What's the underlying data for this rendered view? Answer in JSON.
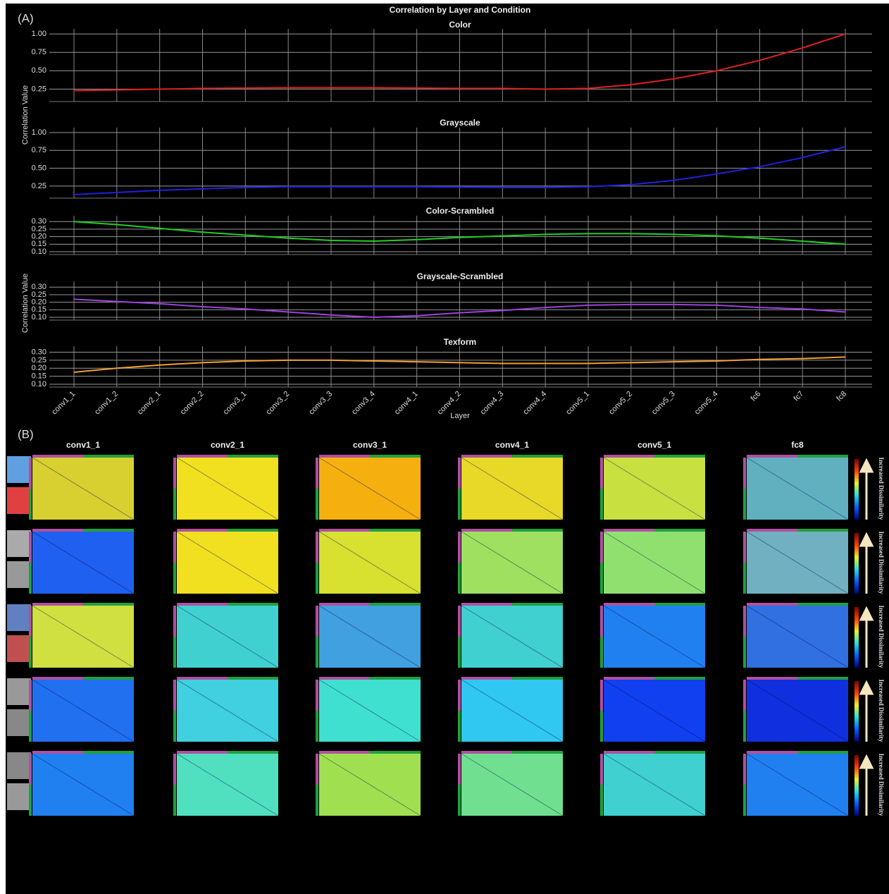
{
  "figure": {
    "title": "Correlation by Layer and Condition",
    "panel_a": "(A)",
    "panel_b": "(B)",
    "y_label": "Correlation Value",
    "x_label": "Layer"
  },
  "chart_data": [
    {
      "type": "line",
      "title": "Color",
      "ylim": [
        0.12,
        1.03
      ],
      "yticks": [
        {
          "value": 0.25,
          "label": "0.25"
        },
        {
          "value": 0.5,
          "label": "0.50"
        },
        {
          "value": 0.75,
          "label": "0.75"
        },
        {
          "value": 1.0,
          "label": "1.00"
        }
      ],
      "grid": true,
      "series": [
        {
          "color": "#e02020",
          "values": [
            0.23,
            0.24,
            0.25,
            0.26,
            0.265,
            0.27,
            0.27,
            0.27,
            0.265,
            0.26,
            0.26,
            0.25,
            0.26,
            0.31,
            0.39,
            0.5,
            0.64,
            0.81,
            1.0
          ]
        }
      ]
    },
    {
      "type": "line",
      "title": "Grayscale",
      "ylim": [
        0.12,
        1.03
      ],
      "yticks": [
        {
          "value": 0.25,
          "label": "0.25"
        },
        {
          "value": 0.5,
          "label": "0.50"
        },
        {
          "value": 0.75,
          "label": "0.75"
        },
        {
          "value": 1.0,
          "label": "1.00"
        }
      ],
      "grid": true,
      "series": [
        {
          "color": "#2020e0",
          "values": [
            0.13,
            0.16,
            0.19,
            0.21,
            0.23,
            0.24,
            0.24,
            0.24,
            0.24,
            0.235,
            0.23,
            0.23,
            0.24,
            0.27,
            0.33,
            0.42,
            0.52,
            0.65,
            0.8
          ]
        }
      ]
    },
    {
      "type": "line",
      "title": "Color-Scrambled",
      "ylim": [
        0.1,
        0.32
      ],
      "yticks": [
        {
          "value": 0.1,
          "label": "0.10"
        },
        0.15,
        {
          "value": 0.2,
          "label": "0.20"
        },
        0.25,
        {
          "value": 0.3,
          "label": "0.30"
        }
      ],
      "grid": true,
      "series": [
        {
          "color": "#20d020",
          "values": [
            0.3,
            0.28,
            0.255,
            0.23,
            0.21,
            0.19,
            0.175,
            0.17,
            0.18,
            0.195,
            0.205,
            0.215,
            0.22,
            0.22,
            0.215,
            0.205,
            0.19,
            0.17,
            0.15
          ]
        }
      ]
    },
    {
      "type": "line",
      "title": "Grayscale-Scrambled",
      "ylim": [
        0.1,
        0.32
      ],
      "yticks": [
        {
          "value": 0.1,
          "label": "0.10"
        },
        0.15,
        {
          "value": 0.2,
          "label": "0.20"
        },
        0.25,
        {
          "value": 0.3,
          "label": "0.30"
        }
      ],
      "grid": true,
      "series": [
        {
          "color": "#a040e0",
          "values": [
            0.22,
            0.205,
            0.19,
            0.17,
            0.155,
            0.135,
            0.115,
            0.1,
            0.11,
            0.13,
            0.145,
            0.165,
            0.18,
            0.185,
            0.185,
            0.18,
            0.165,
            0.155,
            0.135
          ]
        }
      ]
    },
    {
      "type": "line",
      "title": "Texform",
      "ylim": [
        0.1,
        0.32
      ],
      "yticks": [
        {
          "value": 0.1,
          "label": "0.10"
        },
        0.15,
        {
          "value": 0.2,
          "label": "0.20"
        },
        0.25,
        {
          "value": 0.3,
          "label": "0.30"
        }
      ],
      "grid": true,
      "categories": [
        "conv1_1",
        "conv1_2",
        "conv2_1",
        "conv2_2",
        "conv3_1",
        "conv3_2",
        "conv3_3",
        "conv3_4",
        "conv4_1",
        "conv4_2",
        "conv4_3",
        "conv4_4",
        "conv5_1",
        "conv5_2",
        "conv5_3",
        "conv5_4",
        "fc6",
        "fc7",
        "fc8"
      ],
      "series": [
        {
          "color": "#f0a030",
          "values": [
            0.175,
            0.2,
            0.22,
            0.235,
            0.245,
            0.25,
            0.25,
            0.245,
            0.24,
            0.235,
            0.23,
            0.23,
            0.23,
            0.235,
            0.24,
            0.245,
            0.255,
            0.26,
            0.27
          ]
        }
      ]
    }
  ],
  "heatmaps": {
    "columns": [
      "conv1_1",
      "conv2_1",
      "conv3_1",
      "conv4_1",
      "conv5_1",
      "fc8"
    ],
    "colorbar_label": "Increased Dissimilarity",
    "tile_colors": [
      [
        "#d8d030",
        "#f0e020",
        "#f5b010",
        "#e8d828",
        "#c8e040",
        "#60b0c0"
      ],
      [
        "#2060f0",
        "#f0e020",
        "#d8e030",
        "#a0e060",
        "#90e070",
        "#70b0c0"
      ],
      [
        "#d0e040",
        "#40d0d0",
        "#40a0e0",
        "#40d0d0",
        "#2080f0",
        "#3070e0"
      ],
      [
        "#2070f0",
        "#40d0e0",
        "#40e0d0",
        "#30c8f0",
        "#1040f0",
        "#1030e0"
      ],
      [
        "#2080f0",
        "#50e0c0",
        "#a0e050",
        "#70e090",
        "#40d0d0",
        "#2080f0"
      ]
    ]
  }
}
